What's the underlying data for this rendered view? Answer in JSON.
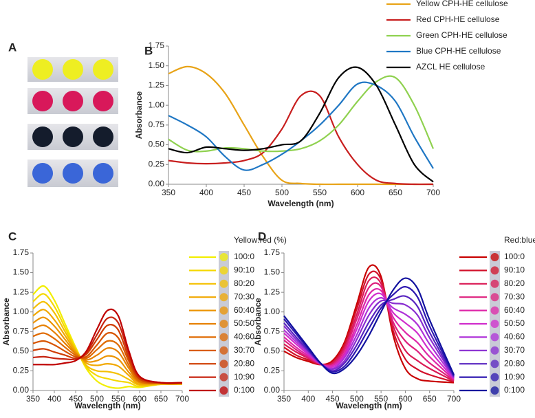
{
  "panel_a": {
    "label": "A"
  },
  "chart_data": [
    {
      "type": "line",
      "panel_label": "B",
      "xlabel": "Wavelength (nm)",
      "ylabel": "Absorbance",
      "x": [
        350,
        375,
        400,
        425,
        450,
        475,
        500,
        525,
        550,
        575,
        600,
        625,
        650,
        675,
        700
      ],
      "series": [
        {
          "name": "Yellow CPH-HE cellulose",
          "color": "#e8a317",
          "values": [
            1.4,
            1.49,
            1.4,
            1.15,
            0.75,
            0.35,
            0.05,
            0.01,
            0,
            0,
            0,
            0,
            0,
            0,
            0
          ]
        },
        {
          "name": "Red CPH-HE cellulose",
          "color": "#c81e1e",
          "values": [
            0.3,
            0.27,
            0.26,
            0.27,
            0.3,
            0.4,
            0.7,
            1.12,
            1.12,
            0.6,
            0.25,
            0.05,
            0.01,
            0,
            0
          ]
        },
        {
          "name": "Green CPH-HE cellulose",
          "color": "#8fd14f",
          "values": [
            0.57,
            0.43,
            0.42,
            0.46,
            0.45,
            0.42,
            0.42,
            0.45,
            0.55,
            0.75,
            1.05,
            1.3,
            1.35,
            1.0,
            0.45
          ]
        },
        {
          "name": "Blue CPH-HE cellulose",
          "color": "#1f77c4",
          "values": [
            0.87,
            0.75,
            0.6,
            0.35,
            0.18,
            0.25,
            0.38,
            0.55,
            0.75,
            1.0,
            1.27,
            1.25,
            1.05,
            0.6,
            0.2
          ]
        },
        {
          "name": "AZCL HE cellulose",
          "color": "#000000",
          "values": [
            0.45,
            0.4,
            0.47,
            0.45,
            0.43,
            0.45,
            0.5,
            0.55,
            0.9,
            1.35,
            1.48,
            1.25,
            0.75,
            0.25,
            0.03
          ]
        }
      ],
      "xlim": [
        350,
        700
      ],
      "xticks": [
        350,
        400,
        450,
        500,
        550,
        600,
        650,
        700
      ],
      "ylim": [
        0,
        1.75
      ],
      "yticks": [
        {
          "value": 0,
          "label": "0.00"
        },
        {
          "value": 0.25,
          "label": "0.25"
        },
        {
          "value": 0.5,
          "label": "0.50"
        },
        {
          "value": 0.75,
          "label": "0.75"
        },
        {
          "value": 1,
          "label": "1.00"
        },
        {
          "value": 1.25,
          "label": "1.25"
        },
        {
          "value": 1.5,
          "label": "1.50"
        },
        {
          "value": 1.75,
          "label": "1.75"
        }
      ]
    },
    {
      "type": "line",
      "panel_label": "C",
      "xlabel": "Wavelength (nm)",
      "ylabel": "Absorbance",
      "legend_title": "Yellow:red (%)",
      "x": [
        350,
        375,
        400,
        425,
        450,
        475,
        500,
        525,
        550,
        575,
        600,
        650,
        700
      ],
      "series": [
        {
          "name": "100:0",
          "color": "#f2ee00",
          "values": [
            1.22,
            1.33,
            1.15,
            0.85,
            0.55,
            0.28,
            0.12,
            0.05,
            0.03,
            0.05,
            0.04,
            0.08,
            0.08
          ]
        },
        {
          "name": "90:10",
          "color": "#f5d800",
          "values": [
            1.13,
            1.23,
            1.07,
            0.8,
            0.53,
            0.3,
            0.19,
            0.15,
            0.12,
            0.1,
            0.05,
            0.08,
            0.08
          ]
        },
        {
          "name": "80:20",
          "color": "#f4c000",
          "values": [
            1.04,
            1.13,
            0.99,
            0.75,
            0.52,
            0.32,
            0.25,
            0.24,
            0.21,
            0.14,
            0.07,
            0.08,
            0.08
          ]
        },
        {
          "name": "70:30",
          "color": "#f1a800",
          "values": [
            0.95,
            1.03,
            0.9,
            0.7,
            0.5,
            0.35,
            0.32,
            0.34,
            0.31,
            0.19,
            0.08,
            0.09,
            0.09
          ]
        },
        {
          "name": "60:40",
          "color": "#ec9400",
          "values": [
            0.86,
            0.93,
            0.82,
            0.65,
            0.48,
            0.37,
            0.38,
            0.44,
            0.4,
            0.23,
            0.1,
            0.09,
            0.09
          ]
        },
        {
          "name": "50:50",
          "color": "#e68000",
          "values": [
            0.78,
            0.83,
            0.74,
            0.6,
            0.47,
            0.39,
            0.45,
            0.54,
            0.49,
            0.28,
            0.11,
            0.09,
            0.09
          ]
        },
        {
          "name": "40:60",
          "color": "#df6a00",
          "values": [
            0.69,
            0.73,
            0.66,
            0.55,
            0.45,
            0.41,
            0.52,
            0.63,
            0.58,
            0.32,
            0.12,
            0.09,
            0.09
          ]
        },
        {
          "name": "30:70",
          "color": "#d75400",
          "values": [
            0.6,
            0.63,
            0.58,
            0.5,
            0.43,
            0.43,
            0.58,
            0.73,
            0.67,
            0.37,
            0.14,
            0.09,
            0.09
          ]
        },
        {
          "name": "20:80",
          "color": "#cf3c00",
          "values": [
            0.51,
            0.53,
            0.49,
            0.45,
            0.41,
            0.46,
            0.65,
            0.83,
            0.77,
            0.41,
            0.15,
            0.1,
            0.1
          ]
        },
        {
          "name": "10:90",
          "color": "#c72410",
          "values": [
            0.42,
            0.43,
            0.41,
            0.4,
            0.4,
            0.48,
            0.71,
            0.92,
            0.86,
            0.46,
            0.17,
            0.1,
            0.1
          ]
        },
        {
          "name": "0:100",
          "color": "#bf0000",
          "values": [
            0.33,
            0.33,
            0.33,
            0.35,
            0.38,
            0.5,
            0.78,
            1.02,
            0.95,
            0.5,
            0.18,
            0.1,
            0.1
          ]
        }
      ],
      "xlim": [
        350,
        700
      ],
      "xticks": [
        350,
        400,
        450,
        500,
        550,
        600,
        650,
        700
      ],
      "ylim": [
        0,
        1.75
      ],
      "yticks": [
        {
          "value": 0,
          "label": "0.00"
        },
        {
          "value": 0.25,
          "label": "0.25"
        },
        {
          "value": 0.5,
          "label": "0.50"
        },
        {
          "value": 0.75,
          "label": "0.75"
        },
        {
          "value": 1,
          "label": "1.00"
        },
        {
          "value": 1.25,
          "label": "1.25"
        },
        {
          "value": 1.5,
          "label": "1.50"
        },
        {
          "value": 1.75,
          "label": "1.75"
        }
      ]
    },
    {
      "type": "line",
      "panel_label": "D",
      "xlabel": "Wavelength (nm)",
      "ylabel": "Absorbance",
      "legend_title": "Red:blue (%)",
      "x": [
        350,
        375,
        400,
        425,
        450,
        475,
        500,
        525,
        550,
        575,
        600,
        625,
        650,
        700
      ],
      "series": [
        {
          "name": "100:0",
          "color": "#c80000",
          "values": [
            0.5,
            0.42,
            0.37,
            0.33,
            0.38,
            0.62,
            1.1,
            1.57,
            1.45,
            0.7,
            0.28,
            0.15,
            0.12,
            0.1
          ]
        },
        {
          "name": "90:10",
          "color": "#d2102a",
          "values": [
            0.55,
            0.45,
            0.39,
            0.33,
            0.36,
            0.59,
            1.04,
            1.48,
            1.41,
            0.76,
            0.4,
            0.27,
            0.2,
            0.11
          ]
        },
        {
          "name": "80:20",
          "color": "#da1a55",
          "values": [
            0.59,
            0.49,
            0.41,
            0.33,
            0.35,
            0.55,
            0.97,
            1.4,
            1.36,
            0.82,
            0.51,
            0.38,
            0.28,
            0.12
          ]
        },
        {
          "name": "70:30",
          "color": "#de207e",
          "values": [
            0.64,
            0.52,
            0.42,
            0.34,
            0.33,
            0.52,
            0.91,
            1.31,
            1.32,
            0.87,
            0.63,
            0.5,
            0.35,
            0.13
          ]
        },
        {
          "name": "60:40",
          "color": "#de25a8",
          "values": [
            0.68,
            0.55,
            0.44,
            0.34,
            0.32,
            0.48,
            0.84,
            1.22,
            1.27,
            0.93,
            0.74,
            0.61,
            0.43,
            0.14
          ]
        },
        {
          "name": "50:50",
          "color": "#d02ccc",
          "values": [
            0.73,
            0.59,
            0.46,
            0.34,
            0.3,
            0.45,
            0.78,
            1.14,
            1.23,
            0.99,
            0.86,
            0.73,
            0.51,
            0.15
          ]
        },
        {
          "name": "40:60",
          "color": "#ae30d8",
          "values": [
            0.77,
            0.62,
            0.48,
            0.34,
            0.28,
            0.42,
            0.71,
            1.05,
            1.18,
            1.05,
            0.97,
            0.84,
            0.59,
            0.16
          ]
        },
        {
          "name": "30:70",
          "color": "#882cd0",
          "values": [
            0.82,
            0.65,
            0.5,
            0.34,
            0.27,
            0.38,
            0.65,
            0.96,
            1.14,
            1.11,
            1.09,
            0.96,
            0.67,
            0.17
          ]
        },
        {
          "name": "20:80",
          "color": "#5824c0",
          "values": [
            0.86,
            0.68,
            0.51,
            0.35,
            0.25,
            0.35,
            0.58,
            0.87,
            1.09,
            1.16,
            1.2,
            1.07,
            0.74,
            0.18
          ]
        },
        {
          "name": "10:90",
          "color": "#2e18b0",
          "values": [
            0.91,
            0.72,
            0.53,
            0.35,
            0.24,
            0.31,
            0.52,
            0.79,
            1.05,
            1.22,
            1.32,
            1.19,
            0.82,
            0.19
          ]
        },
        {
          "name": "0:100",
          "color": "#10109e",
          "values": [
            0.95,
            0.75,
            0.55,
            0.35,
            0.22,
            0.28,
            0.45,
            0.7,
            1.0,
            1.28,
            1.43,
            1.3,
            0.9,
            0.2
          ]
        }
      ],
      "xlim": [
        350,
        700
      ],
      "xticks": [
        350,
        400,
        450,
        500,
        550,
        600,
        650,
        700
      ],
      "ylim": [
        0,
        1.75
      ],
      "yticks": [
        {
          "value": 0,
          "label": "0.00"
        },
        {
          "value": 0.25,
          "label": "0.25"
        },
        {
          "value": 0.5,
          "label": "0.50"
        },
        {
          "value": 0.75,
          "label": "0.75"
        },
        {
          "value": 1,
          "label": "1.00"
        },
        {
          "value": 1.25,
          "label": "1.25"
        },
        {
          "value": 1.5,
          "label": "1.50"
        },
        {
          "value": 1.75,
          "label": "1.75"
        }
      ]
    }
  ]
}
